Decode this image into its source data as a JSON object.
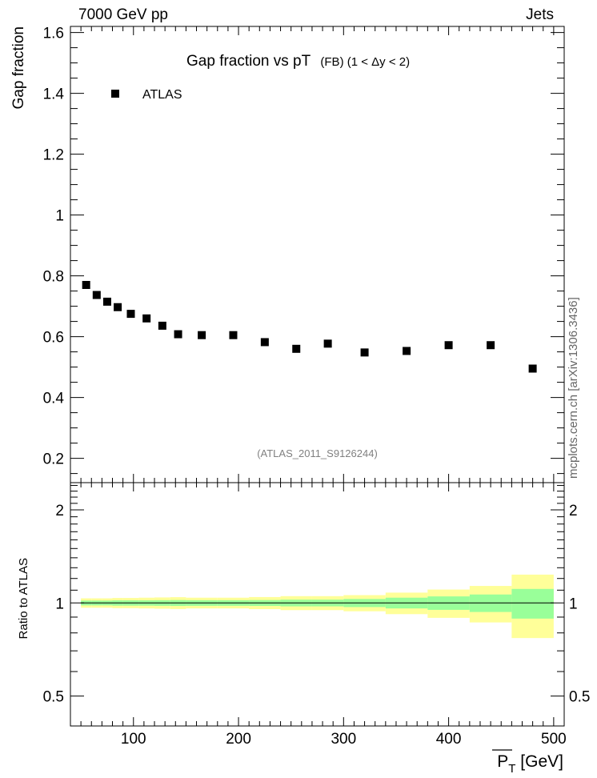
{
  "header": {
    "left": "7000 GeV pp",
    "right": "Jets"
  },
  "side_label": "mcplots.cern.ch [arXiv:1306.3436]",
  "colors": {
    "data_marker": "#000000",
    "band_inner": "#99ff99",
    "band_outer": "#ffff99",
    "watermark": "#808080"
  },
  "chart_data": [
    {
      "type": "scatter",
      "panel": "main",
      "title": "Gap fraction vs pT",
      "title_suffix": "(FB) (1 < Δy < 2)",
      "ylabel": "Gap fraction",
      "xlabel": "",
      "xlim": [
        40,
        510
      ],
      "ylim": [
        0.12,
        1.62
      ],
      "yticks": [
        0.2,
        0.4,
        0.6,
        0.8,
        1,
        1.2,
        1.4,
        1.6
      ],
      "ytick_labels": [
        "0.2",
        "0.4",
        "0.6",
        "0.8",
        "1",
        "1.2",
        "1.4",
        "1.6"
      ],
      "legend": {
        "label": "ATLAS",
        "position": "top-left"
      },
      "watermark": "(ATLAS_2011_S9126244)",
      "series": [
        {
          "name": "ATLAS",
          "x": [
            55,
            65,
            75,
            85,
            97.5,
            112.5,
            127.5,
            142.5,
            165,
            195,
            225,
            255,
            285,
            320,
            360,
            400,
            440,
            480
          ],
          "y": [
            0.77,
            0.737,
            0.715,
            0.697,
            0.675,
            0.66,
            0.636,
            0.608,
            0.605,
            0.605,
            0.582,
            0.56,
            0.577,
            0.548,
            0.553,
            0.572,
            0.572,
            0.495
          ]
        }
      ]
    },
    {
      "type": "area",
      "panel": "ratio",
      "ylabel": "Ratio to ATLAS",
      "xlabel": "P_T [GeV]",
      "xlabel_main": "P",
      "xlabel_sub": "T",
      "xlabel_unit": "[GeV]",
      "ylim": [
        0.4,
        2.45
      ],
      "xticks": [
        100,
        200,
        300,
        400,
        500
      ],
      "xtick_labels": [
        "100",
        "200",
        "300",
        "400",
        "500"
      ],
      "yticks": [
        0.5,
        1,
        2
      ],
      "ytick_labels": [
        "0.5",
        "1",
        "2"
      ],
      "reference": 1,
      "bins": [
        {
          "lo": 50,
          "hi": 60,
          "inner": [
            0.982,
            1.018
          ],
          "outer": [
            0.965,
            1.035
          ]
        },
        {
          "lo": 60,
          "hi": 70,
          "inner": [
            0.982,
            1.018
          ],
          "outer": [
            0.965,
            1.035
          ]
        },
        {
          "lo": 70,
          "hi": 80,
          "inner": [
            0.982,
            1.018
          ],
          "outer": [
            0.965,
            1.035
          ]
        },
        {
          "lo": 80,
          "hi": 90,
          "inner": [
            0.98,
            1.02
          ],
          "outer": [
            0.962,
            1.038
          ]
        },
        {
          "lo": 90,
          "hi": 105,
          "inner": [
            0.98,
            1.02
          ],
          "outer": [
            0.962,
            1.038
          ]
        },
        {
          "lo": 105,
          "hi": 120,
          "inner": [
            0.98,
            1.02
          ],
          "outer": [
            0.96,
            1.04
          ]
        },
        {
          "lo": 120,
          "hi": 135,
          "inner": [
            0.979,
            1.021
          ],
          "outer": [
            0.958,
            1.042
          ]
        },
        {
          "lo": 135,
          "hi": 150,
          "inner": [
            0.978,
            1.022
          ],
          "outer": [
            0.956,
            1.044
          ]
        },
        {
          "lo": 150,
          "hi": 180,
          "inner": [
            0.979,
            1.021
          ],
          "outer": [
            0.96,
            1.04
          ]
        },
        {
          "lo": 180,
          "hi": 210,
          "inner": [
            0.979,
            1.021
          ],
          "outer": [
            0.96,
            1.04
          ]
        },
        {
          "lo": 210,
          "hi": 240,
          "inner": [
            0.978,
            1.022
          ],
          "outer": [
            0.955,
            1.045
          ]
        },
        {
          "lo": 240,
          "hi": 270,
          "inner": [
            0.975,
            1.025
          ],
          "outer": [
            0.948,
            1.052
          ]
        },
        {
          "lo": 270,
          "hi": 300,
          "inner": [
            0.975,
            1.025
          ],
          "outer": [
            0.948,
            1.052
          ]
        },
        {
          "lo": 300,
          "hi": 340,
          "inner": [
            0.97,
            1.03
          ],
          "outer": [
            0.94,
            1.06
          ]
        },
        {
          "lo": 340,
          "hi": 380,
          "inner": [
            0.96,
            1.04
          ],
          "outer": [
            0.92,
            1.08
          ]
        },
        {
          "lo": 380,
          "hi": 420,
          "inner": [
            0.95,
            1.05
          ],
          "outer": [
            0.895,
            1.105
          ]
        },
        {
          "lo": 420,
          "hi": 460,
          "inner": [
            0.935,
            1.065
          ],
          "outer": [
            0.865,
            1.135
          ]
        },
        {
          "lo": 460,
          "hi": 500,
          "inner": [
            0.89,
            1.11
          ],
          "outer": [
            0.77,
            1.235
          ]
        }
      ]
    }
  ]
}
